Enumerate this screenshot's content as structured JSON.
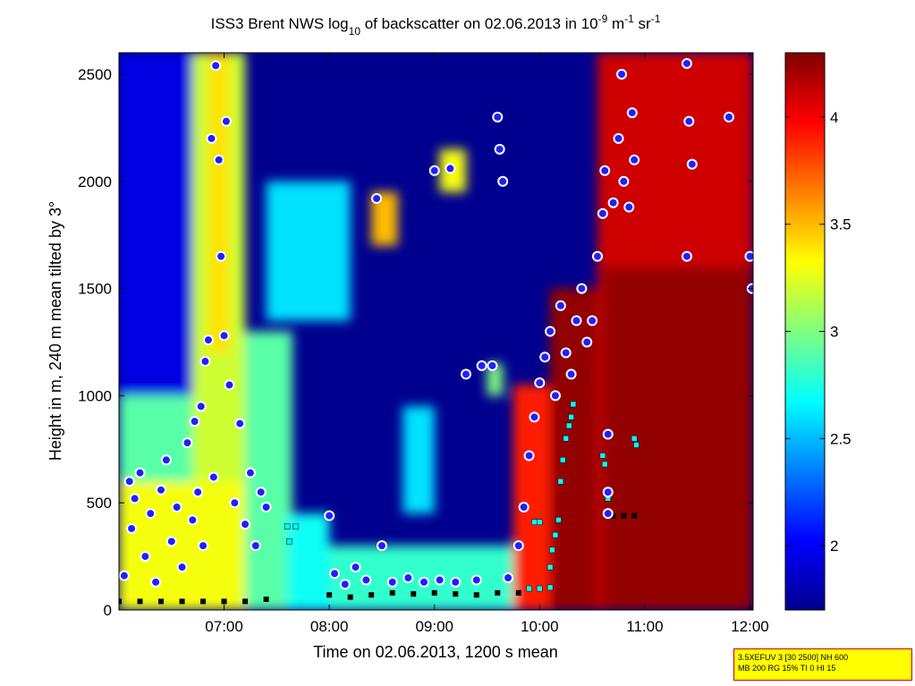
{
  "chart_data": {
    "type": "heatmap",
    "title_parts": {
      "prefix": "ISS3 Brent NWS log",
      "log_base": "10",
      "middle": " of backscatter on 02.06.2013 in 10",
      "exp1": "-9",
      "m_unit": " m",
      "exp2": "-1",
      "sr_unit": " sr",
      "exp3": "-1"
    },
    "xlabel": "Time on 02.06.2013, 1200 s mean",
    "ylabel": "Height in m, 240 m mean tilted by 3°",
    "x_ticks": [
      "07:00",
      "08:00",
      "09:00",
      "10:00",
      "11:00",
      "12:00"
    ],
    "x_tick_hours": [
      7,
      8,
      9,
      10,
      11,
      12
    ],
    "xlim_hours": [
      6.0,
      12.03
    ],
    "y_ticks": [
      0,
      500,
      1000,
      1500,
      2000,
      2500
    ],
    "ylim": [
      0,
      2600
    ],
    "colorbar": {
      "range": [
        1.7,
        4.3
      ],
      "ticks": [
        2,
        2.5,
        3,
        3.5,
        4
      ],
      "tick_labels": [
        "2",
        "2.5",
        "3",
        "3.5",
        "4"
      ],
      "colormap": "jet"
    },
    "field_regions": [
      {
        "t0": 6.0,
        "t1": 6.75,
        "h0": 0,
        "h1": 2600,
        "v": 1.95
      },
      {
        "t0": 6.0,
        "t1": 6.75,
        "h0": 0,
        "h1": 1000,
        "v": 2.9
      },
      {
        "t0": 6.7,
        "t1": 7.2,
        "h0": 0,
        "h1": 2600,
        "v": 3.2
      },
      {
        "t0": 6.85,
        "t1": 7.05,
        "h0": 1200,
        "h1": 2600,
        "v": 3.4
      },
      {
        "t0": 6.0,
        "t1": 7.4,
        "h0": 0,
        "h1": 600,
        "v": 3.3
      },
      {
        "t0": 7.2,
        "t1": 7.65,
        "h0": 0,
        "h1": 1300,
        "v": 2.9
      },
      {
        "t0": 7.4,
        "t1": 8.2,
        "h0": 1350,
        "h1": 2000,
        "v": 2.6
      },
      {
        "t0": 8.4,
        "t1": 8.65,
        "h0": 1700,
        "h1": 1950,
        "v": 3.5
      },
      {
        "t0": 8.7,
        "t1": 9.0,
        "h0": 450,
        "h1": 950,
        "v": 2.6
      },
      {
        "t0": 8.0,
        "t1": 9.8,
        "h0": 0,
        "h1": 300,
        "v": 2.8
      },
      {
        "t0": 7.6,
        "t1": 8.0,
        "h0": 0,
        "h1": 450,
        "v": 2.7
      },
      {
        "t0": 9.75,
        "t1": 10.15,
        "h0": 0,
        "h1": 1050,
        "v": 3.9
      },
      {
        "t0": 10.1,
        "t1": 10.6,
        "h0": 0,
        "h1": 1500,
        "v": 4.25
      },
      {
        "t0": 10.55,
        "t1": 12.03,
        "h0": 0,
        "h1": 2600,
        "v": 4.1
      },
      {
        "t0": 10.6,
        "t1": 12.03,
        "h0": 0,
        "h1": 1600,
        "v": 4.25
      },
      {
        "t0": 9.05,
        "t1": 9.3,
        "h0": 1950,
        "h1": 2150,
        "v": 3.3
      },
      {
        "t0": 9.5,
        "t1": 9.65,
        "h0": 1000,
        "h1": 1150,
        "v": 3.0
      }
    ],
    "cloud_base_points": [
      {
        "t": 6.05,
        "h": 160
      },
      {
        "t": 6.1,
        "h": 600
      },
      {
        "t": 6.12,
        "h": 380
      },
      {
        "t": 6.15,
        "h": 520
      },
      {
        "t": 6.2,
        "h": 640
      },
      {
        "t": 6.25,
        "h": 250
      },
      {
        "t": 6.3,
        "h": 450
      },
      {
        "t": 6.35,
        "h": 130
      },
      {
        "t": 6.4,
        "h": 560
      },
      {
        "t": 6.45,
        "h": 700
      },
      {
        "t": 6.5,
        "h": 320
      },
      {
        "t": 6.55,
        "h": 480
      },
      {
        "t": 6.6,
        "h": 200
      },
      {
        "t": 6.65,
        "h": 780
      },
      {
        "t": 6.7,
        "h": 420
      },
      {
        "t": 6.72,
        "h": 880
      },
      {
        "t": 6.75,
        "h": 550
      },
      {
        "t": 6.78,
        "h": 950
      },
      {
        "t": 6.8,
        "h": 300
      },
      {
        "t": 6.82,
        "h": 1160
      },
      {
        "t": 6.85,
        "h": 1260
      },
      {
        "t": 6.88,
        "h": 2200
      },
      {
        "t": 6.9,
        "h": 620
      },
      {
        "t": 6.92,
        "h": 2540
      },
      {
        "t": 6.95,
        "h": 2100
      },
      {
        "t": 6.97,
        "h": 1650
      },
      {
        "t": 7.0,
        "h": 1280
      },
      {
        "t": 7.02,
        "h": 2280
      },
      {
        "t": 7.05,
        "h": 1050
      },
      {
        "t": 7.1,
        "h": 500
      },
      {
        "t": 7.15,
        "h": 870
      },
      {
        "t": 7.2,
        "h": 400
      },
      {
        "t": 7.25,
        "h": 640
      },
      {
        "t": 7.3,
        "h": 300
      },
      {
        "t": 7.35,
        "h": 550
      },
      {
        "t": 7.4,
        "h": 480
      },
      {
        "t": 8.0,
        "h": 440
      },
      {
        "t": 8.05,
        "h": 170
      },
      {
        "t": 8.15,
        "h": 120
      },
      {
        "t": 8.25,
        "h": 200
      },
      {
        "t": 8.35,
        "h": 140
      },
      {
        "t": 8.45,
        "h": 1920
      },
      {
        "t": 8.5,
        "h": 300
      },
      {
        "t": 8.6,
        "h": 130
      },
      {
        "t": 8.75,
        "h": 150
      },
      {
        "t": 8.9,
        "h": 130
      },
      {
        "t": 9.0,
        "h": 2050
      },
      {
        "t": 9.05,
        "h": 140
      },
      {
        "t": 9.15,
        "h": 2060
      },
      {
        "t": 9.2,
        "h": 130
      },
      {
        "t": 9.3,
        "h": 1100
      },
      {
        "t": 9.4,
        "h": 140
      },
      {
        "t": 9.45,
        "h": 1140
      },
      {
        "t": 9.55,
        "h": 1140
      },
      {
        "t": 9.6,
        "h": 2300
      },
      {
        "t": 9.62,
        "h": 2150
      },
      {
        "t": 9.65,
        "h": 2000
      },
      {
        "t": 9.7,
        "h": 150
      },
      {
        "t": 9.8,
        "h": 300
      },
      {
        "t": 9.85,
        "h": 480
      },
      {
        "t": 9.9,
        "h": 720
      },
      {
        "t": 9.95,
        "h": 900
      },
      {
        "t": 10.0,
        "h": 1060
      },
      {
        "t": 10.05,
        "h": 1180
      },
      {
        "t": 10.1,
        "h": 1300
      },
      {
        "t": 10.15,
        "h": 1000
      },
      {
        "t": 10.2,
        "h": 1420
      },
      {
        "t": 10.25,
        "h": 1200
      },
      {
        "t": 10.3,
        "h": 1100
      },
      {
        "t": 10.35,
        "h": 1350
      },
      {
        "t": 10.4,
        "h": 1500
      },
      {
        "t": 10.45,
        "h": 1250
      },
      {
        "t": 10.5,
        "h": 1350
      },
      {
        "t": 10.55,
        "h": 1650
      },
      {
        "t": 10.6,
        "h": 1850
      },
      {
        "t": 10.62,
        "h": 2050
      },
      {
        "t": 10.65,
        "h": 820
      },
      {
        "t": 10.7,
        "h": 1900
      },
      {
        "t": 10.75,
        "h": 2200
      },
      {
        "t": 10.78,
        "h": 2500
      },
      {
        "t": 10.8,
        "h": 2000
      },
      {
        "t": 10.85,
        "h": 1880
      },
      {
        "t": 10.88,
        "h": 2320
      },
      {
        "t": 10.9,
        "h": 2100
      },
      {
        "t": 11.4,
        "h": 2550
      },
      {
        "t": 11.42,
        "h": 2280
      },
      {
        "t": 11.45,
        "h": 2080
      },
      {
        "t": 11.4,
        "h": 1650
      },
      {
        "t": 11.8,
        "h": 2300
      },
      {
        "t": 12.0,
        "h": 1650
      },
      {
        "t": 12.02,
        "h": 1500
      },
      {
        "t": 10.65,
        "h": 550
      },
      {
        "t": 10.65,
        "h": 450
      }
    ],
    "mixing_layer_points": [
      {
        "t": 7.6,
        "h": 390
      },
      {
        "t": 7.68,
        "h": 390
      },
      {
        "t": 7.62,
        "h": 320
      },
      {
        "t": 10.0,
        "h": 410
      },
      {
        "t": 9.95,
        "h": 410
      },
      {
        "t": 10.1,
        "h": 200
      },
      {
        "t": 10.12,
        "h": 280
      },
      {
        "t": 10.15,
        "h": 350
      },
      {
        "t": 10.18,
        "h": 420
      },
      {
        "t": 10.2,
        "h": 600
      },
      {
        "t": 10.22,
        "h": 700
      },
      {
        "t": 10.25,
        "h": 800
      },
      {
        "t": 10.28,
        "h": 860
      },
      {
        "t": 10.3,
        "h": 900
      },
      {
        "t": 10.32,
        "h": 960
      },
      {
        "t": 10.6,
        "h": 720
      },
      {
        "t": 10.62,
        "h": 680
      },
      {
        "t": 10.65,
        "h": 520
      },
      {
        "t": 10.9,
        "h": 800
      },
      {
        "t": 10.92,
        "h": 770
      },
      {
        "t": 9.9,
        "h": 100
      },
      {
        "t": 10.0,
        "h": 100
      },
      {
        "t": 10.1,
        "h": 105
      }
    ],
    "aerosol_layer_points": [
      {
        "t": 6.0,
        "h": 40
      },
      {
        "t": 6.2,
        "h": 40
      },
      {
        "t": 6.4,
        "h": 40
      },
      {
        "t": 6.6,
        "h": 40
      },
      {
        "t": 6.8,
        "h": 40
      },
      {
        "t": 7.0,
        "h": 40
      },
      {
        "t": 7.2,
        "h": 40
      },
      {
        "t": 7.4,
        "h": 50
      },
      {
        "t": 8.0,
        "h": 70
      },
      {
        "t": 8.2,
        "h": 60
      },
      {
        "t": 8.4,
        "h": 70
      },
      {
        "t": 8.6,
        "h": 80
      },
      {
        "t": 8.8,
        "h": 75
      },
      {
        "t": 9.0,
        "h": 80
      },
      {
        "t": 9.2,
        "h": 75
      },
      {
        "t": 9.4,
        "h": 70
      },
      {
        "t": 9.6,
        "h": 80
      },
      {
        "t": 9.8,
        "h": 80
      },
      {
        "t": 10.7,
        "h": 440
      },
      {
        "t": 10.8,
        "h": 440
      },
      {
        "t": 10.9,
        "h": 440
      }
    ],
    "param_box": [
      "3.5XEFUV 3 [30 2500] NH 600",
      "MB 200 RG 15% TI 0 HI 15"
    ]
  }
}
